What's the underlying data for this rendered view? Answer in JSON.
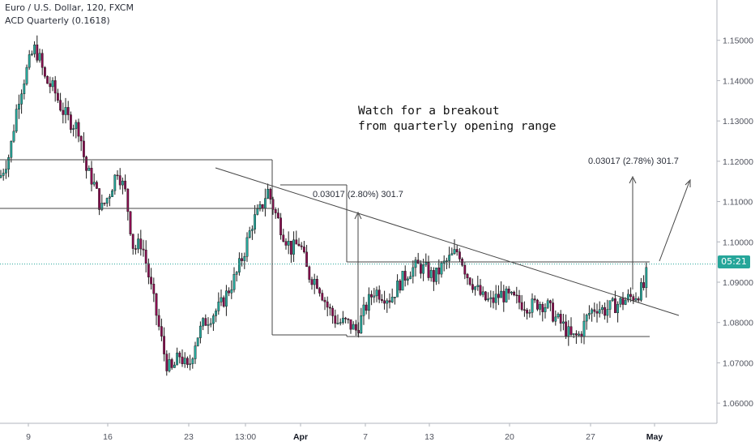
{
  "legend": {
    "symbol_line": "Euro / U.S. Dollar, 120, FXCM",
    "indicator_line": "ACD Quarterly (0.1618)"
  },
  "annotations": {
    "note_line1": "Watch for a breakout",
    "note_line2": "from quarterly opening range",
    "measure_left": "0.03017 (2.80%) 301.7",
    "measure_right": "0.03017 (2.78%) 301.7"
  },
  "price_badge": "05:21",
  "colors": {
    "up": "#26a69a",
    "down": "#880e4f",
    "line": "#444444",
    "current_price": "#26a69a"
  },
  "chart_data": {
    "type": "candlestick",
    "title": "Euro / U.S. Dollar, 120, FXCM",
    "y_range": [
      1.055,
      1.16
    ],
    "y_ticks": [
      "1.06000",
      "1.07000",
      "1.08000",
      "1.09000",
      "1.10000",
      "1.11000",
      "1.12000",
      "1.13000",
      "1.14000",
      "1.15000"
    ],
    "x_ticks": [
      {
        "label": "9",
        "bold": false
      },
      {
        "label": "16",
        "bold": false
      },
      {
        "label": "23",
        "bold": false
      },
      {
        "label": "13:00",
        "bold": false
      },
      {
        "label": "Apr",
        "bold": true
      },
      {
        "label": "7",
        "bold": false
      },
      {
        "label": "13",
        "bold": false
      },
      {
        "label": "20",
        "bold": false
      },
      {
        "label": "27",
        "bold": false
      },
      {
        "label": "May",
        "bold": true
      }
    ],
    "current_price": 1.0945,
    "path_points": [
      [
        0,
        1.116
      ],
      [
        12,
        1.122
      ],
      [
        22,
        1.135
      ],
      [
        32,
        1.142
      ],
      [
        42,
        1.148
      ],
      [
        48,
        1.146
      ],
      [
        56,
        1.14
      ],
      [
        66,
        1.138
      ],
      [
        76,
        1.133
      ],
      [
        86,
        1.13
      ],
      [
        98,
        1.128
      ],
      [
        106,
        1.118
      ],
      [
        115,
        1.115
      ],
      [
        125,
        1.108
      ],
      [
        135,
        1.112
      ],
      [
        145,
        1.118
      ],
      [
        155,
        1.112
      ],
      [
        165,
        1.098
      ],
      [
        175,
        1.1
      ],
      [
        185,
        1.09
      ],
      [
        195,
        1.08
      ],
      [
        205,
        1.07
      ],
      [
        212,
        1.068
      ],
      [
        222,
        1.072
      ],
      [
        232,
        1.068
      ],
      [
        242,
        1.076
      ],
      [
        252,
        1.08
      ],
      [
        262,
        1.082
      ],
      [
        272,
        1.084
      ],
      [
        282,
        1.088
      ],
      [
        292,
        1.092
      ],
      [
        302,
        1.098
      ],
      [
        312,
        1.105
      ],
      [
        322,
        1.108
      ],
      [
        330,
        1.113
      ],
      [
        340,
        1.107
      ],
      [
        350,
        1.102
      ],
      [
        360,
        1.098
      ],
      [
        370,
        1.1
      ],
      [
        380,
        1.092
      ],
      [
        392,
        1.09
      ],
      [
        404,
        1.084
      ],
      [
        416,
        1.08
      ],
      [
        428,
        1.08
      ],
      [
        440,
        1.078
      ],
      [
        452,
        1.084
      ],
      [
        462,
        1.088
      ],
      [
        472,
        1.087
      ],
      [
        482,
        1.086
      ],
      [
        494,
        1.09
      ],
      [
        506,
        1.093
      ],
      [
        516,
        1.094
      ],
      [
        526,
        1.093
      ],
      [
        536,
        1.091
      ],
      [
        546,
        1.094
      ],
      [
        556,
        1.096
      ],
      [
        566,
        1.098
      ],
      [
        576,
        1.092
      ],
      [
        586,
        1.089
      ],
      [
        596,
        1.086
      ],
      [
        606,
        1.085
      ],
      [
        618,
        1.087
      ],
      [
        630,
        1.086
      ],
      [
        642,
        1.085
      ],
      [
        654,
        1.084
      ],
      [
        666,
        1.085
      ],
      [
        676,
        1.084
      ],
      [
        686,
        1.081
      ],
      [
        696,
        1.079
      ],
      [
        706,
        1.076
      ],
      [
        716,
        1.077
      ],
      [
        726,
        1.082
      ],
      [
        736,
        1.084
      ],
      [
        746,
        1.083
      ],
      [
        756,
        1.084
      ],
      [
        766,
        1.085
      ],
      [
        776,
        1.086
      ],
      [
        786,
        1.087
      ],
      [
        796,
        1.089
      ],
      [
        800,
        1.095
      ]
    ]
  }
}
